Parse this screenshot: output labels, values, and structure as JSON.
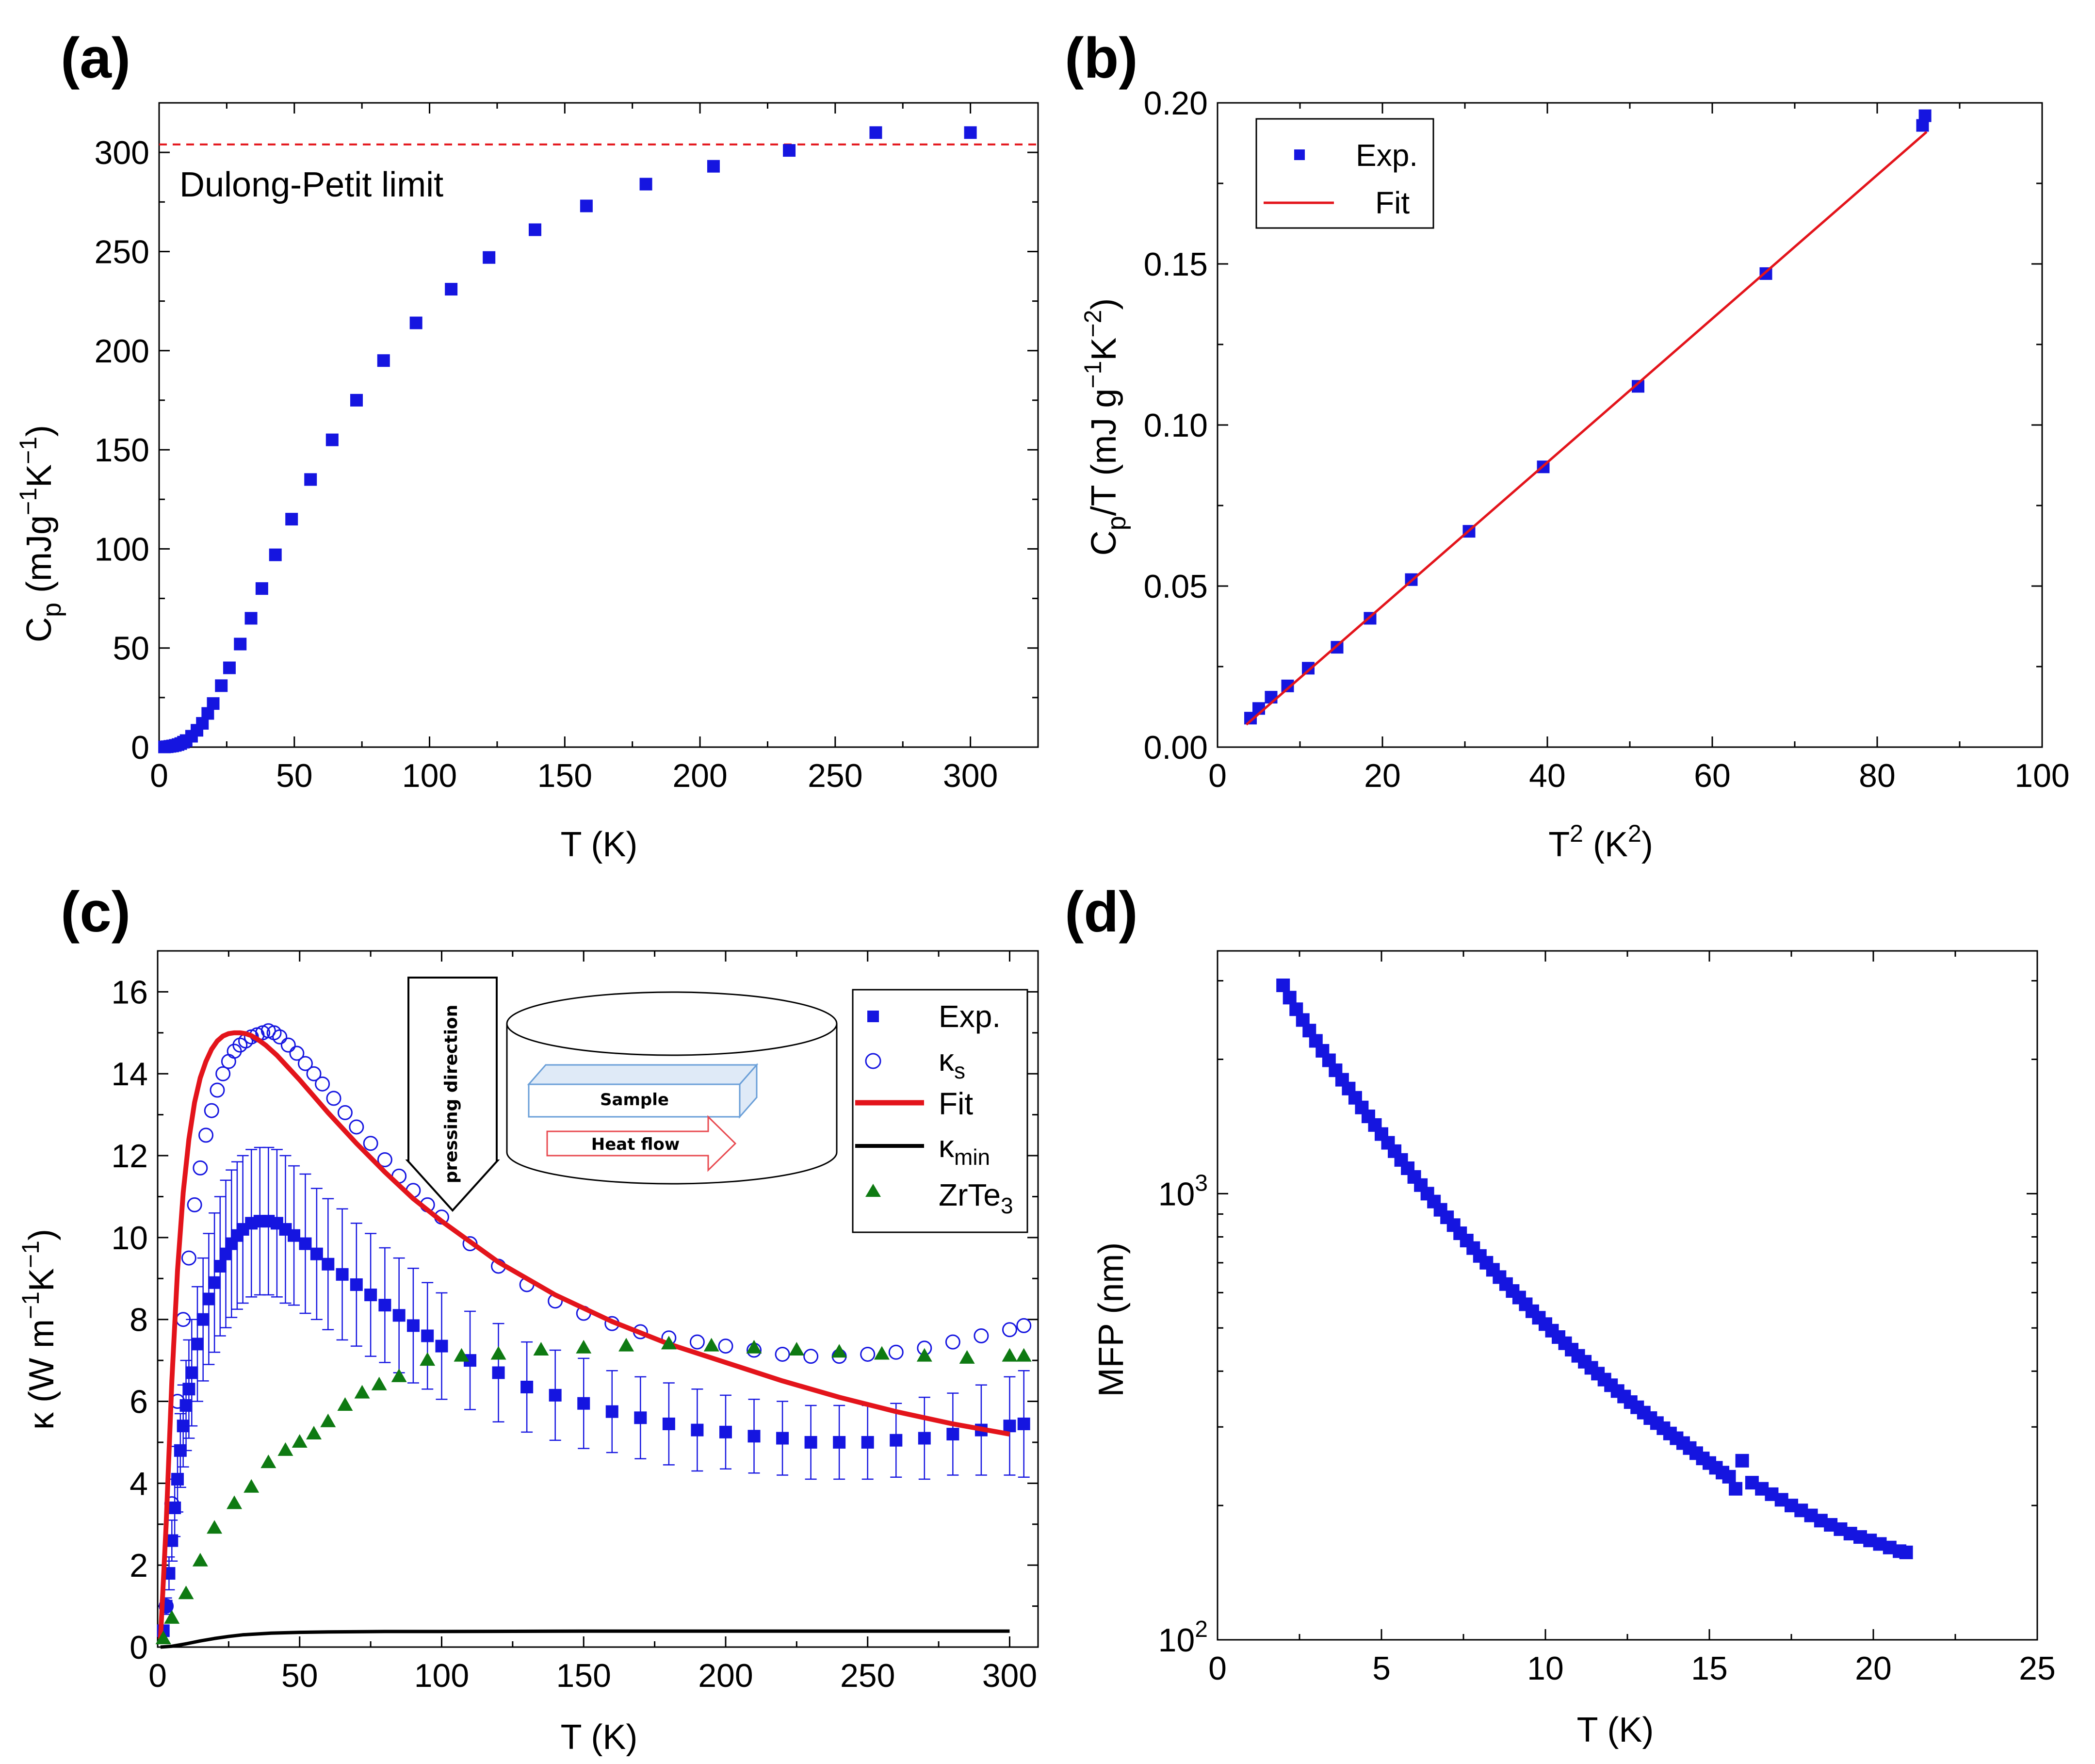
{
  "figure": {
    "colors": {
      "blue": "#1515e0",
      "red": "#e3141b",
      "green": "#0e7a12",
      "black": "#000000",
      "inset_blue": "#6a9fd8",
      "inset_red": "#e8494f"
    }
  },
  "chart_data": [
    {
      "id": "a",
      "type": "scatter",
      "panel_label": "(a)",
      "title": "",
      "xlabel": "T (K)",
      "ylabel": {
        "main": "C",
        "sub": "p",
        "rest": " (mJg",
        "sup1": "−1",
        "mid": "K",
        "sup2": "−1",
        "end": ")"
      },
      "xlim": [
        0,
        325
      ],
      "ylim": [
        0,
        325
      ],
      "xticks": [
        0,
        50,
        100,
        150,
        200,
        250,
        300
      ],
      "yticks": [
        0,
        50,
        100,
        150,
        200,
        250,
        300
      ],
      "xtick_labels": [
        "0",
        "50",
        "100",
        "150",
        "200",
        "250",
        "300"
      ],
      "ytick_labels": [
        "0",
        "50",
        "100",
        "150",
        "200",
        "250",
        "300"
      ],
      "reference_line": {
        "y": 304,
        "label": "Dulong-Petit limit",
        "style": "dashed",
        "color": "#e3141b"
      },
      "series": [
        {
          "name": "Exp.",
          "marker": "square",
          "color": "#1515e0",
          "x": [
            2,
            3,
            4,
            5,
            6,
            7,
            8,
            9,
            10,
            12,
            14,
            16,
            18,
            20,
            23,
            26,
            30,
            34,
            38,
            43,
            49,
            56,
            64,
            73,
            83,
            95,
            108,
            122,
            139,
            158,
            180,
            205,
            233,
            265,
            300
          ],
          "y": [
            0.1,
            0.2,
            0.4,
            0.6,
            0.9,
            1.3,
            1.8,
            2.5,
            3.3,
            5.5,
            8.5,
            12,
            17,
            22,
            31,
            40,
            52,
            65,
            80,
            97,
            115,
            135,
            155,
            175,
            195,
            214,
            231,
            247,
            261,
            273,
            284,
            293,
            301,
            310,
            310
          ]
        }
      ]
    },
    {
      "id": "b",
      "type": "scatter",
      "panel_label": "(b)",
      "title": "",
      "xlabel": {
        "main": "T",
        "sup": "2",
        "rest": " (K",
        "sup2": "2",
        "end": ")"
      },
      "ylabel": {
        "main": "C",
        "sub": "p",
        "rest": "/T (mJ g",
        "sup1": "−1",
        "mid": "K",
        "sup2": "−2",
        "end": ")"
      },
      "xlim": [
        0,
        100
      ],
      "ylim": [
        0,
        0.2
      ],
      "xticks": [
        0,
        20,
        40,
        60,
        80,
        100
      ],
      "yticks": [
        0,
        0.05,
        0.1,
        0.15,
        0.2
      ],
      "xtick_labels": [
        "0",
        "20",
        "40",
        "60",
        "80",
        "100"
      ],
      "ytick_labels": [
        "0.00",
        "0.05",
        "0.10",
        "0.15",
        "0.20"
      ],
      "legend": [
        "Exp.",
        "Fit"
      ],
      "series": [
        {
          "name": "Exp.",
          "marker": "square",
          "color": "#1515e0",
          "x": [
            4.0,
            5.0,
            6.5,
            8.5,
            11.0,
            14.5,
            18.5,
            23.5,
            30.5,
            39.5,
            51.0,
            66.5,
            85.5,
            85.8
          ],
          "y": [
            0.009,
            0.012,
            0.0155,
            0.019,
            0.0245,
            0.031,
            0.04,
            0.052,
            0.067,
            0.087,
            0.112,
            0.147,
            0.193,
            0.196
          ]
        },
        {
          "name": "Fit",
          "style": "line",
          "color": "#e3141b",
          "x": [
            3.5,
            86
          ],
          "y": [
            0.007,
            0.191
          ]
        }
      ]
    },
    {
      "id": "c",
      "type": "scatter",
      "panel_label": "(c)",
      "title": "",
      "xlabel": "T (K)",
      "ylabel": {
        "main": "κ (W m",
        "sup1": "−1",
        "mid": "K",
        "sup2": "−1",
        "end": ")"
      },
      "xlim": [
        0,
        310
      ],
      "ylim": [
        0,
        17
      ],
      "xticks": [
        0,
        50,
        100,
        150,
        200,
        250,
        300
      ],
      "yticks": [
        0,
        2,
        4,
        6,
        8,
        10,
        12,
        14,
        16
      ],
      "xtick_labels": [
        "0",
        "50",
        "100",
        "150",
        "200",
        "250",
        "300"
      ],
      "ytick_labels": [
        "0",
        "2",
        "4",
        "6",
        "8",
        "10",
        "12",
        "14",
        "16"
      ],
      "legend": [
        {
          "label": "Exp.",
          "marker": "square"
        },
        {
          "label": "κ",
          "sub": "s",
          "marker": "circle"
        },
        {
          "label": "Fit",
          "marker": "line-red"
        },
        {
          "label": "κ",
          "sub": "min",
          "marker": "line-black"
        },
        {
          "label": "ZrTe",
          "sub": "3",
          "marker": "triangle"
        }
      ],
      "inset": {
        "arrow_text": "pressing direction",
        "sample_text": "Sample",
        "heat_text": "Heat flow"
      },
      "series": [
        {
          "name": "Exp.",
          "marker": "square",
          "color": "#1515e0",
          "x": [
            2,
            3,
            4,
            5,
            6,
            7,
            8,
            9,
            10,
            11,
            12,
            14,
            16,
            18,
            20,
            22,
            24,
            26,
            28,
            30,
            33,
            36,
            39,
            42,
            45,
            48,
            52,
            56,
            60,
            65,
            70,
            75,
            80,
            85,
            90,
            95,
            100,
            110,
            120,
            130,
            140,
            150,
            160,
            170,
            180,
            190,
            200,
            210,
            220,
            230,
            240,
            250,
            260,
            270,
            280,
            290,
            300,
            305
          ],
          "y": [
            0.4,
            1.0,
            1.8,
            2.6,
            3.4,
            4.1,
            4.8,
            5.4,
            5.9,
            6.3,
            6.7,
            7.4,
            8.0,
            8.5,
            8.9,
            9.3,
            9.6,
            9.85,
            10.05,
            10.2,
            10.35,
            10.4,
            10.4,
            10.35,
            10.2,
            10.05,
            9.85,
            9.6,
            9.35,
            9.1,
            8.85,
            8.6,
            8.35,
            8.1,
            7.85,
            7.6,
            7.35,
            7.0,
            6.7,
            6.35,
            6.15,
            5.95,
            5.75,
            5.6,
            5.45,
            5.3,
            5.25,
            5.15,
            5.1,
            5.0,
            5.0,
            5.0,
            5.05,
            5.1,
            5.2,
            5.3,
            5.4,
            5.45
          ],
          "error": [
            0.1,
            0.2,
            0.4,
            0.5,
            0.7,
            0.8,
            0.9,
            1.0,
            1.1,
            1.2,
            1.3,
            1.4,
            1.5,
            1.6,
            1.7,
            1.7,
            1.8,
            1.8,
            1.8,
            1.8,
            1.8,
            1.8,
            1.8,
            1.8,
            1.8,
            1.7,
            1.7,
            1.6,
            1.6,
            1.6,
            1.5,
            1.5,
            1.4,
            1.4,
            1.4,
            1.3,
            1.3,
            1.2,
            1.2,
            1.1,
            1.1,
            1.1,
            1.0,
            1.0,
            1.0,
            1.0,
            0.9,
            0.9,
            0.9,
            0.9,
            0.9,
            0.9,
            0.9,
            1.0,
            1.0,
            1.1,
            1.2,
            1.3
          ]
        },
        {
          "name": "κs",
          "marker": "circle",
          "color": "#1515e0",
          "x": [
            3,
            5,
            7,
            9,
            11,
            13,
            15,
            17,
            19,
            21,
            23,
            25,
            27,
            29,
            31,
            33,
            35,
            37,
            39,
            41,
            43,
            46,
            49,
            52,
            55,
            58,
            62,
            66,
            70,
            75,
            80,
            85,
            90,
            95,
            100,
            110,
            120,
            130,
            140,
            150,
            160,
            170,
            180,
            190,
            200,
            210,
            220,
            230,
            240,
            250,
            260,
            270,
            280,
            290,
            300,
            305
          ],
          "y": [
            1.0,
            3.5,
            6.0,
            8.0,
            9.5,
            10.8,
            11.7,
            12.5,
            13.1,
            13.6,
            14.0,
            14.3,
            14.55,
            14.7,
            14.8,
            14.9,
            14.95,
            15.0,
            15.05,
            15.0,
            14.9,
            14.7,
            14.5,
            14.25,
            14.0,
            13.75,
            13.4,
            13.05,
            12.7,
            12.3,
            11.9,
            11.5,
            11.15,
            10.8,
            10.5,
            9.85,
            9.3,
            8.85,
            8.45,
            8.15,
            7.9,
            7.7,
            7.55,
            7.45,
            7.35,
            7.25,
            7.15,
            7.1,
            7.1,
            7.15,
            7.2,
            7.3,
            7.45,
            7.6,
            7.75,
            7.85
          ]
        },
        {
          "name": "Fit",
          "style": "line",
          "color": "#e3141b",
          "x": [
            1,
            3,
            5,
            7,
            9,
            11,
            13,
            15,
            17,
            19,
            21,
            23,
            25,
            27,
            29,
            31,
            33,
            35,
            38,
            42,
            46,
            50,
            55,
            60,
            70,
            80,
            90,
            100,
            120,
            140,
            160,
            180,
            200,
            220,
            240,
            260,
            280,
            300
          ],
          "y": [
            0.2,
            3.0,
            6.5,
            9.2,
            11.1,
            12.4,
            13.3,
            13.9,
            14.3,
            14.6,
            14.8,
            14.92,
            14.98,
            15.0,
            15.0,
            14.98,
            14.93,
            14.85,
            14.7,
            14.45,
            14.15,
            13.85,
            13.45,
            13.05,
            12.3,
            11.6,
            10.95,
            10.4,
            9.4,
            8.6,
            7.95,
            7.4,
            6.95,
            6.5,
            6.1,
            5.75,
            5.45,
            5.2
          ]
        },
        {
          "name": "κmin",
          "style": "line",
          "color": "#000000",
          "x": [
            1,
            5,
            10,
            15,
            20,
            25,
            30,
            40,
            50,
            60,
            80,
            100,
            150,
            200,
            250,
            300
          ],
          "y": [
            0.0,
            0.02,
            0.08,
            0.15,
            0.21,
            0.26,
            0.3,
            0.34,
            0.36,
            0.37,
            0.38,
            0.38,
            0.39,
            0.39,
            0.39,
            0.39
          ]
        },
        {
          "name": "ZrTe3",
          "marker": "triangle",
          "color": "#0e7a12",
          "x": [
            2,
            5,
            10,
            15,
            20,
            27,
            33,
            39,
            45,
            50,
            55,
            60,
            66,
            72,
            78,
            85,
            95,
            107,
            120,
            135,
            150,
            165,
            180,
            195,
            210,
            225,
            240,
            255,
            270,
            285,
            300,
            305
          ],
          "y": [
            0.2,
            0.7,
            1.3,
            2.1,
            2.9,
            3.5,
            3.9,
            4.5,
            4.8,
            5.0,
            5.2,
            5.5,
            5.9,
            6.2,
            6.4,
            6.6,
            7.0,
            7.1,
            7.15,
            7.25,
            7.3,
            7.35,
            7.4,
            7.35,
            7.3,
            7.25,
            7.2,
            7.15,
            7.1,
            7.05,
            7.1,
            7.1
          ]
        }
      ]
    },
    {
      "id": "d",
      "type": "scatter",
      "panel_label": "(d)",
      "title": "",
      "xlabel": "T (K)",
      "ylabel": "MFP (nm)",
      "yscale": "log",
      "xlim": [
        0,
        25
      ],
      "ylim": [
        100,
        3500
      ],
      "xticks": [
        0,
        5,
        10,
        15,
        20,
        25
      ],
      "yticks": [
        100,
        1000
      ],
      "xtick_labels": [
        "0",
        "5",
        "10",
        "15",
        "20",
        "25"
      ],
      "ytick_labels": [
        {
          "base": "10",
          "exp": "2"
        },
        {
          "base": "10",
          "exp": "3"
        }
      ],
      "series": [
        {
          "name": "MFP",
          "marker": "square",
          "color": "#1515e0",
          "x": [
            2.0,
            2.2,
            2.4,
            2.6,
            2.8,
            3.0,
            3.2,
            3.4,
            3.6,
            3.8,
            4.0,
            4.2,
            4.4,
            4.6,
            4.8,
            5.0,
            5.2,
            5.4,
            5.6,
            5.8,
            6.0,
            6.2,
            6.4,
            6.6,
            6.8,
            7.0,
            7.2,
            7.4,
            7.6,
            7.8,
            8.0,
            8.2,
            8.4,
            8.6,
            8.8,
            9.0,
            9.2,
            9.4,
            9.6,
            9.8,
            10.0,
            10.2,
            10.4,
            10.6,
            10.8,
            11.0,
            11.2,
            11.4,
            11.6,
            11.8,
            12.0,
            12.2,
            12.4,
            12.6,
            12.8,
            13.0,
            13.2,
            13.4,
            13.6,
            13.8,
            14.0,
            14.2,
            14.4,
            14.6,
            14.8,
            15.0,
            15.2,
            15.4,
            15.6,
            15.8,
            16.0,
            16.3,
            16.6,
            16.9,
            17.2,
            17.5,
            17.8,
            18.1,
            18.4,
            18.7,
            19.0,
            19.3,
            19.6,
            19.9,
            20.2,
            20.5,
            20.8,
            21.0
          ],
          "y": [
            2930,
            2750,
            2590,
            2450,
            2320,
            2200,
            2090,
            1990,
            1890,
            1800,
            1720,
            1640,
            1560,
            1490,
            1425,
            1360,
            1300,
            1245,
            1190,
            1140,
            1090,
            1045,
            1000,
            960,
            920,
            885,
            850,
            815,
            785,
            755,
            725,
            700,
            675,
            650,
            627,
            605,
            585,
            565,
            545,
            527,
            510,
            493,
            477,
            462,
            447,
            433,
            420,
            407,
            395,
            383,
            372,
            361,
            351,
            341,
            332,
            323,
            314,
            306,
            298,
            290,
            283,
            276,
            269,
            262,
            255,
            249,
            243,
            237,
            232,
            218,
            252,
            225,
            218,
            212,
            206,
            200,
            195,
            190,
            185,
            181,
            177,
            173,
            170,
            167,
            164,
            161,
            158,
            157
          ]
        }
      ]
    }
  ]
}
